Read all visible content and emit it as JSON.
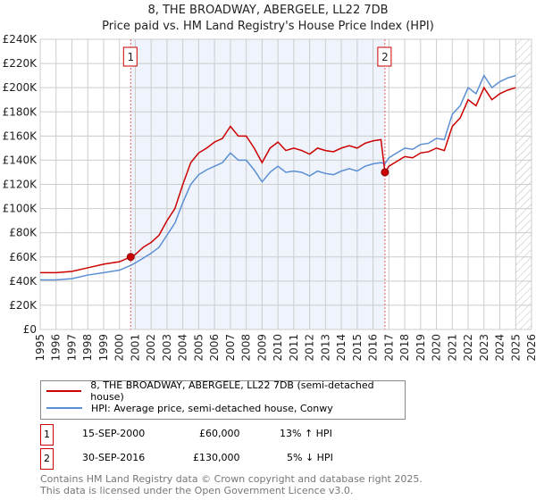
{
  "chart_data": {
    "type": "line",
    "title": "8, THE BROADWAY, ABERGELE, LL22 7DB",
    "subtitle": "Price paid vs. HM Land Registry's House Price Index (HPI)",
    "xlim": [
      1995,
      2026
    ],
    "ylim": [
      0,
      240000
    ],
    "yticks": [
      0,
      20000,
      40000,
      60000,
      80000,
      100000,
      120000,
      140000,
      160000,
      180000,
      200000,
      220000,
      240000
    ],
    "ytick_labels": [
      "£0",
      "£20K",
      "£40K",
      "£60K",
      "£80K",
      "£100K",
      "£120K",
      "£140K",
      "£160K",
      "£180K",
      "£200K",
      "£220K",
      "£240K"
    ],
    "xticks": [
      "1995",
      "1996",
      "1997",
      "1998",
      "1999",
      "2000",
      "2001",
      "2002",
      "2003",
      "2004",
      "2005",
      "2006",
      "2007",
      "2008",
      "2009",
      "2010",
      "2011",
      "2012",
      "2013",
      "2014",
      "2015",
      "2016",
      "2017",
      "2018",
      "2019",
      "2020",
      "2021",
      "2022",
      "2023",
      "2024",
      "2025",
      "2026"
    ],
    "grid": true,
    "shaded_range": [
      2000.71,
      2016.75
    ],
    "hatched_from": 2025.0,
    "series": [
      {
        "name": "8, THE BROADWAY, ABERGELE, LL22 7DB (semi-detached house)",
        "color": "#cc0000",
        "x": [
          1995,
          1996,
          1997,
          1998,
          1999,
          2000,
          2000.71,
          2001,
          2001.5,
          2002,
          2002.5,
          2003,
          2003.5,
          2004,
          2004.5,
          2005,
          2005.5,
          2006,
          2006.5,
          2007,
          2007.5,
          2008,
          2008.5,
          2009,
          2009.5,
          2010,
          2010.5,
          2011,
          2011.5,
          2012,
          2012.5,
          2013,
          2013.5,
          2014,
          2014.5,
          2015,
          2015.5,
          2016,
          2016.5,
          2016.75,
          2017,
          2017.5,
          2018,
          2018.5,
          2019,
          2019.5,
          2020,
          2020.5,
          2021,
          2021.5,
          2022,
          2022.5,
          2023,
          2023.5,
          2024,
          2024.5,
          2025
        ],
        "y": [
          47000,
          47000,
          48000,
          51000,
          54000,
          56000,
          60000,
          62000,
          68000,
          72000,
          78000,
          90000,
          100000,
          120000,
          138000,
          146000,
          150000,
          155000,
          158000,
          168000,
          160000,
          160000,
          150000,
          138000,
          150000,
          155000,
          148000,
          150000,
          148000,
          145000,
          150000,
          148000,
          147000,
          150000,
          152000,
          150000,
          154000,
          156000,
          157000,
          130000,
          135000,
          139000,
          143000,
          142000,
          146000,
          147000,
          150000,
          148000,
          168000,
          175000,
          190000,
          185000,
          200000,
          190000,
          195000,
          198000,
          200000
        ]
      },
      {
        "name": "HPI: Average price, semi-detached house, Conwy",
        "color": "#5b8fd4",
        "x": [
          1995,
          1996,
          1997,
          1998,
          1999,
          2000,
          2000.71,
          2001,
          2001.5,
          2002,
          2002.5,
          2003,
          2003.5,
          2004,
          2004.5,
          2005,
          2005.5,
          2006,
          2006.5,
          2007,
          2007.5,
          2008,
          2008.5,
          2009,
          2009.5,
          2010,
          2010.5,
          2011,
          2011.5,
          2012,
          2012.5,
          2013,
          2013.5,
          2014,
          2014.5,
          2015,
          2015.5,
          2016,
          2016.5,
          2016.75,
          2017,
          2017.5,
          2018,
          2018.5,
          2019,
          2019.5,
          2020,
          2020.5,
          2021,
          2021.5,
          2022,
          2022.5,
          2023,
          2023.5,
          2024,
          2024.5,
          2025
        ],
        "y": [
          41000,
          41000,
          42000,
          45000,
          47000,
          49000,
          53000,
          55000,
          59000,
          63000,
          68000,
          78000,
          88000,
          105000,
          120000,
          128000,
          132000,
          135000,
          138000,
          146000,
          140000,
          140000,
          132000,
          122000,
          130000,
          135000,
          130000,
          131000,
          130000,
          127000,
          131000,
          129000,
          128000,
          131000,
          133000,
          131000,
          135000,
          137000,
          138000,
          137000,
          142000,
          146000,
          150000,
          149000,
          153000,
          154000,
          158000,
          157000,
          178000,
          185000,
          200000,
          195000,
          210000,
          200000,
          205000,
          208000,
          210000
        ]
      }
    ],
    "annotations": [
      {
        "label": "1",
        "x": 2000.71
      },
      {
        "label": "2",
        "x": 2016.75
      }
    ],
    "sales": [
      {
        "label": "1",
        "x": 2000.71,
        "y": 60000
      },
      {
        "label": "2",
        "x": 2016.75,
        "y": 130000
      }
    ]
  },
  "table": [
    {
      "num": "1",
      "date": "15-SEP-2000",
      "price": "£60,000",
      "hpi": "13% ↑ HPI"
    },
    {
      "num": "2",
      "date": "30-SEP-2016",
      "price": "£130,000",
      "hpi": "5% ↓ HPI"
    }
  ],
  "footer": {
    "line1": "Contains HM Land Registry data © Crown copyright and database right 2025.",
    "line2": "This data is licensed under the Open Government Licence v3.0."
  }
}
